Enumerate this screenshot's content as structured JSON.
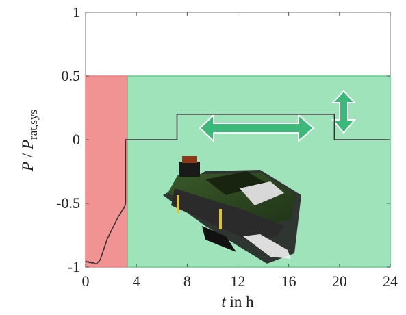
{
  "chart_data": {
    "type": "line",
    "title": "",
    "xlabel": "t in h",
    "ylabel": "P / P_rat,sys",
    "xlim": [
      0,
      24
    ],
    "ylim": [
      -1,
      1
    ],
    "x_ticks": [
      "0",
      "4",
      "8",
      "12",
      "16",
      "20",
      "24"
    ],
    "y_ticks": [
      "1",
      "0.5",
      "0",
      "-0.5",
      "-1"
    ],
    "grid": false,
    "legend": "none",
    "regions": [
      {
        "x": [
          0,
          3.3
        ],
        "y": [
          -1,
          0.5
        ],
        "color": "#f08080",
        "label": ""
      },
      {
        "x": [
          3.3,
          24
        ],
        "y": [
          -1,
          0.5
        ],
        "color": "#5fd08c",
        "label": ""
      }
    ],
    "series": [
      {
        "color": "#333333",
        "x": [
          0,
          0.1,
          0.2,
          0.3,
          0.4,
          0.5,
          0.6,
          0.7,
          0.8,
          0.9,
          1.0,
          1.1,
          1.2,
          1.3,
          1.4,
          1.5,
          1.6,
          1.7,
          1.8,
          1.9,
          2.0,
          2.1,
          2.2,
          2.3,
          2.4,
          2.5,
          2.6,
          2.7,
          2.8,
          2.9,
          3.0,
          3.1,
          3.15,
          3.15,
          7.2,
          7.2,
          19.6,
          19.6,
          24
        ],
        "y": [
          -0.95,
          -0.96,
          -0.955,
          -0.965,
          -0.96,
          -0.97,
          -0.965,
          -0.97,
          -0.975,
          -0.97,
          -0.96,
          -0.95,
          -0.93,
          -0.9,
          -0.87,
          -0.84,
          -0.81,
          -0.78,
          -0.76,
          -0.74,
          -0.72,
          -0.7,
          -0.68,
          -0.66,
          -0.64,
          -0.62,
          -0.6,
          -0.59,
          -0.57,
          -0.55,
          -0.54,
          -0.52,
          -0.5,
          0.0,
          0.0,
          0.2,
          0.2,
          0.0,
          0.0
        ]
      }
    ],
    "annotations": [
      {
        "type": "double-arrow-horizontal",
        "color": "#3cb878"
      },
      {
        "type": "double-arrow-vertical",
        "color": "#3cb878"
      },
      {
        "type": "device-photo",
        "subject": "power electronics converter board"
      }
    ]
  }
}
